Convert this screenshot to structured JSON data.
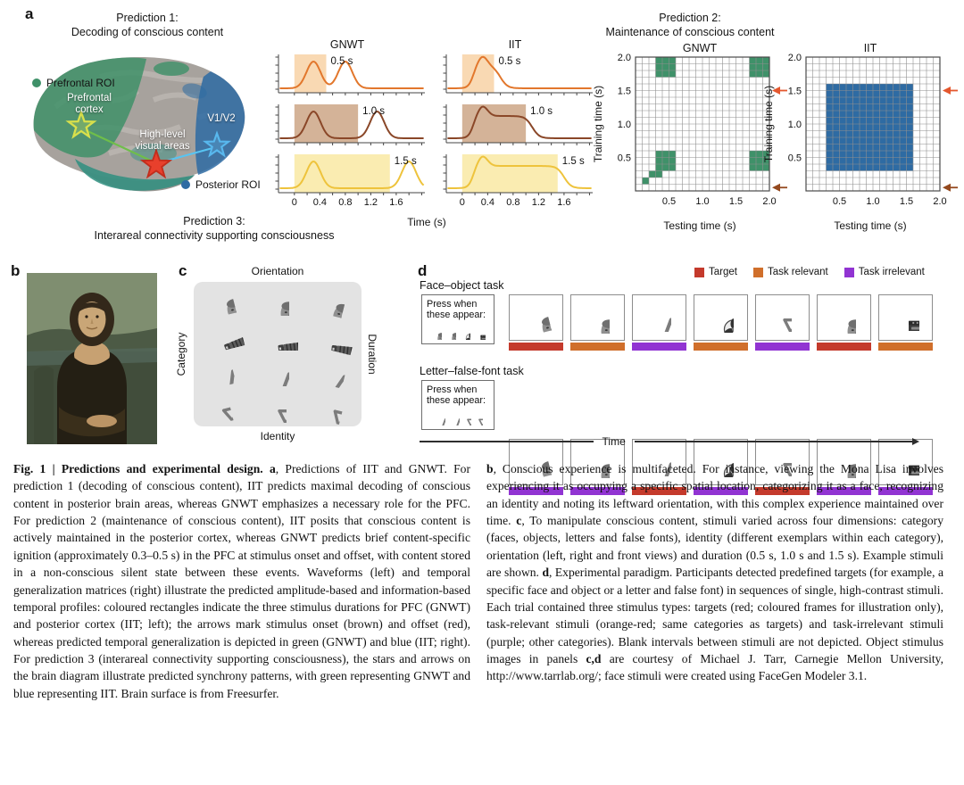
{
  "figure": {
    "panel_a": {
      "label": "a",
      "prediction1": {
        "line1": "Prediction 1:",
        "line2": "Decoding of conscious content"
      },
      "prediction2": {
        "line1": "Prediction 2:",
        "line2": "Maintenance of conscious content"
      },
      "prediction3": {
        "line1": "Prediction 3:",
        "line2": "Interareal connectivity supporting consciousness"
      },
      "brain": {
        "legend_prefrontal": "Prefrontal ROI",
        "legend_posterior": "Posterior ROI",
        "prefrontal_label_line1": "Prefrontal",
        "prefrontal_label_line2": "cortex",
        "hlva_label_line1": "High-level",
        "hlva_label_line2": "visual areas",
        "v1v2_label": "V1/V2",
        "region_colors": {
          "prefrontal_green": "#3f9169",
          "posterior_blue": "#2e6ba3",
          "temporal_teal": "#2f8f80"
        }
      }
    },
    "panel_b": {
      "label": "b",
      "image_alt": "Mona Lisa painting"
    },
    "panel_c": {
      "label": "c",
      "axis_top": "Orientation",
      "axis_left": "Category",
      "axis_right": "Duration",
      "axis_bottom": "Identity",
      "rows": [
        {
          "category": "face",
          "icon": "face",
          "variants": [
            "left",
            "front",
            "right"
          ]
        },
        {
          "category": "object",
          "icon": "accordion",
          "variants": [
            "left",
            "front",
            "right"
          ]
        },
        {
          "category": "letter",
          "icon": "letter-a",
          "variants": [
            "left",
            "front",
            "right"
          ]
        },
        {
          "category": "false font",
          "icon": "false-font",
          "variants": [
            "left",
            "front",
            "right"
          ]
        }
      ]
    },
    "panel_d": {
      "label": "d",
      "legend": [
        {
          "key": "target",
          "label": "Target",
          "color": "#c43a2c"
        },
        {
          "key": "relevant",
          "label": "Task relevant",
          "color": "#d06f2b"
        },
        {
          "key": "irrelevant",
          "label": "Task irrelevant",
          "color": "#9134d2"
        }
      ],
      "tasks": [
        {
          "name": "Face–object task",
          "press_label": "Press when these appear:",
          "press_icons": [
            "face",
            "face",
            "fan",
            "oven"
          ],
          "sequence": [
            {
              "icon": "face",
              "variant": "left",
              "type": "target"
            },
            {
              "icon": "face",
              "variant": "front",
              "type": "relevant"
            },
            {
              "icon": "letter-a",
              "variant": "front",
              "type": "irrelevant"
            },
            {
              "icon": "fan",
              "variant": "front",
              "type": "relevant"
            },
            {
              "icon": "false-font",
              "variant": "front",
              "type": "irrelevant"
            },
            {
              "icon": "face",
              "variant": "front",
              "type": "target"
            },
            {
              "icon": "oven",
              "variant": "front",
              "type": "relevant"
            }
          ]
        },
        {
          "name": "Letter–false-font task",
          "press_label": "Press when these appear:",
          "press_icons": [
            "letter-a",
            "letter-a",
            "false-font",
            "false-font"
          ],
          "sequence": [
            {
              "icon": "face",
              "variant": "left",
              "type": "irrelevant"
            },
            {
              "icon": "face",
              "variant": "front",
              "type": "irrelevant"
            },
            {
              "icon": "letter-a",
              "variant": "front",
              "type": "target"
            },
            {
              "icon": "fan",
              "variant": "front",
              "type": "irrelevant"
            },
            {
              "icon": "false-font",
              "variant": "front",
              "type": "target"
            },
            {
              "icon": "face",
              "variant": "front",
              "type": "irrelevant"
            },
            {
              "icon": "oven",
              "variant": "front",
              "type": "irrelevant"
            }
          ]
        }
      ],
      "time_axis_label": "Time"
    },
    "caption": {
      "left_segments": [
        {
          "b": true,
          "t": "Fig. 1 | Predictions and experimental design. "
        },
        {
          "b": true,
          "t": "a"
        },
        {
          "b": false,
          "t": ", Predictions of IIT and GNWT. For prediction 1 (decoding of conscious content), IIT predicts maximal decoding of conscious content in posterior brain areas, whereas GNWT emphasizes a necessary role for the PFC. For prediction 2 (maintenance of conscious content), IIT posits that conscious content is actively maintained in the posterior cortex, whereas GNWT predicts brief content-specific ignition (approximately 0.3–0.5 s) in the PFC at stimulus onset and offset, with content stored in a non-conscious silent state between these events. Waveforms (left) and temporal generalization matrices (right) illustrate the predicted amplitude-based and information-based temporal profiles: coloured rectangles indicate the three stimulus durations for PFC (GNWT) and posterior cortex (IIT; left); the arrows mark stimulus onset (brown) and offset (red), whereas predicted temporal generalization is depicted in green (GNWT) and blue (IIT; right). For prediction 3 (interareal connectivity supporting consciousness), the stars and arrows on the brain diagram illustrate predicted synchrony patterns, with green representing GNWT and blue representing IIT. Brain surface is from Freesurfer."
        }
      ],
      "right_segments": [
        {
          "b": true,
          "t": "b"
        },
        {
          "b": false,
          "t": ", Conscious experience is multifaceted. For instance, viewing the Mona Lisa involves experiencing it as occupying a specific spatial location, categorizing it as a face, recognizing an identity and noting its leftward orientation, with this complex experience maintained over time. "
        },
        {
          "b": true,
          "t": "c"
        },
        {
          "b": false,
          "t": ", To manipulate conscious content, stimuli varied across four dimensions: category (faces, objects, letters and false fonts), identity (different exemplars within each category), orientation (left, right and front views) and duration (0.5 s, 1.0 s and 1.5 s). Example stimuli are shown. "
        },
        {
          "b": true,
          "t": "d"
        },
        {
          "b": false,
          "t": ", Experimental paradigm. Participants detected predefined targets (for example, a specific face and object or a letter and false font) in sequences of single, high-contrast stimuli. Each trial contained three stimulus types: targets (red; coloured frames for illustration only), task-relevant stimuli (orange-red; same categories as targets) and task-irrelevant stimuli (purple; other categories). Blank intervals between stimuli are not depicted. Object stimulus images in panels "
        },
        {
          "b": true,
          "t": "c,d"
        },
        {
          "b": false,
          "t": " are courtesy of Michael J. Tarr, Carnegie Mellon University, http://www.tarrlab.org/; face stimuli were created using FaceGen Modeler 3.1."
        }
      ]
    }
  },
  "chart_data": [
    {
      "type": "line",
      "id": "gnwt-waveforms",
      "title": "GNWT",
      "profile": "transient",
      "xlabel": "Time (s)",
      "x_range": [
        -0.25,
        2.05
      ],
      "x_ticks": [
        0,
        0.4,
        0.8,
        1.2,
        1.6
      ],
      "rows": [
        {
          "duration_s": 0.5,
          "label": "0.5 s",
          "onset_peak_s": 0.3,
          "offset_peak_s": 0.8
        },
        {
          "duration_s": 1.0,
          "label": "1.0 s",
          "onset_peak_s": 0.3,
          "offset_peak_s": 1.3
        },
        {
          "duration_s": 1.5,
          "label": "1.5 s",
          "onset_peak_s": 0.3,
          "offset_peak_s": 1.8
        }
      ],
      "row_colors": {
        "line": [
          "#e2772c",
          "#8a4728",
          "#eec33c"
        ],
        "fill": [
          "#f7cfa0",
          "#c9a07e",
          "#f9e79e"
        ]
      },
      "description": "Predicted brief content-specific ignition in PFC at stimulus onset and offset (GNWT); shaded rectangles mark the three stimulus durations"
    },
    {
      "type": "line",
      "id": "iit-waveforms",
      "title": "IIT",
      "profile": "sustained",
      "xlabel": "Time (s)",
      "x_range": [
        -0.25,
        2.05
      ],
      "x_ticks": [
        0,
        0.4,
        0.8,
        1.2,
        1.6
      ],
      "rows": [
        {
          "duration_s": 0.5,
          "label": "0.5 s"
        },
        {
          "duration_s": 1.0,
          "label": "1.0 s"
        },
        {
          "duration_s": 1.5,
          "label": "1.5 s"
        }
      ],
      "row_colors": {
        "line": [
          "#e2772c",
          "#8a4728",
          "#eec33c"
        ],
        "fill": [
          "#f7cfa0",
          "#c9a07e",
          "#f9e79e"
        ]
      },
      "description": "Predicted sustained activation in posterior cortex across the full stimulus duration (IIT)"
    },
    {
      "type": "heatmap",
      "id": "gnwt-matrix",
      "title": "GNWT",
      "xlabel": "Testing time (s)",
      "ylabel": "Training time (s)",
      "axis_range": [
        0,
        2
      ],
      "grid_cells": 20,
      "ticks": [
        0.5,
        1.0,
        1.5,
        2.0
      ],
      "fill_color": "#3f9169",
      "filled_regions_s": [
        [
          0.3,
          0.6,
          0.3,
          0.6
        ],
        [
          0.2,
          0.4,
          0.2,
          0.3
        ],
        [
          0.1,
          0.2,
          0.1,
          0.2
        ],
        [
          0.3,
          0.6,
          1.7,
          2.0
        ],
        [
          1.7,
          2.0,
          1.7,
          2.0
        ],
        [
          1.7,
          2.0,
          0.3,
          0.6
        ]
      ],
      "arrows": [
        {
          "y_s": 1.5,
          "color": "#e4572e",
          "meaning": "stimulus offset"
        },
        {
          "y_s": 0.05,
          "color": "#94491e",
          "meaning": "stimulus onset"
        }
      ]
    },
    {
      "type": "heatmap",
      "id": "iit-matrix",
      "title": "IIT",
      "xlabel": "Testing time (s)",
      "ylabel": "Training time (s)",
      "axis_range": [
        0,
        2
      ],
      "grid_cells": 20,
      "ticks": [
        0.5,
        1.0,
        1.5,
        2.0
      ],
      "fill_color": "#2e6ba3",
      "filled_regions_s": [
        [
          0.3,
          1.6,
          0.3,
          1.6
        ]
      ],
      "arrows": [
        {
          "y_s": 1.5,
          "color": "#e4572e",
          "meaning": "stimulus offset"
        },
        {
          "y_s": 0.05,
          "color": "#94491e",
          "meaning": "stimulus onset"
        }
      ]
    }
  ]
}
